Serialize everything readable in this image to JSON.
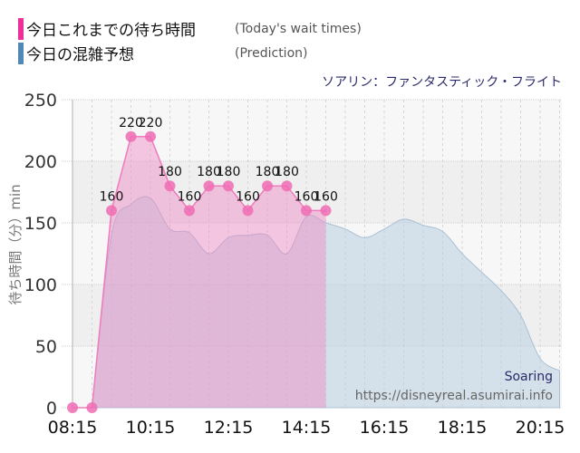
{
  "legend": {
    "actual": {
      "label_jp": "今日これまでの待ち時間",
      "label_en": "(Today's wait times)",
      "color": "#ee2f97"
    },
    "prediction": {
      "label_jp": "今日の混雑予想",
      "label_en": "(Prediction)",
      "color": "#5088b8"
    }
  },
  "attraction_title": "ソアリン：ファンタスティック・フライト",
  "watermark": {
    "name": "Soaring",
    "url": "https://disneyreal.asumirai.info"
  },
  "chart_data": {
    "type": "area",
    "title": "ソアリン：ファンタスティック・フライト",
    "ylabel": "待ち時間（分）min",
    "xlabel": "",
    "ylim": [
      0,
      250
    ],
    "yticks": [
      0,
      50,
      100,
      150,
      200,
      250
    ],
    "xticks": [
      "08:15",
      "10:15",
      "12:15",
      "14:15",
      "16:15",
      "18:15",
      "20:15"
    ],
    "series": [
      {
        "name": "今日これまでの待ち時間 (Today's wait times)",
        "x": [
          "08:15",
          "08:45",
          "09:15",
          "09:45",
          "10:15",
          "10:45",
          "11:15",
          "11:45",
          "12:15",
          "12:45",
          "13:15",
          "13:45",
          "14:15",
          "14:45"
        ],
        "values": [
          0,
          0,
          160,
          220,
          220,
          180,
          160,
          180,
          180,
          160,
          180,
          180,
          160,
          160
        ],
        "data_labels": [
          "",
          "",
          "160",
          "220",
          "220",
          "180",
          "160",
          "180",
          "180",
          "160",
          "180",
          "180",
          "160",
          "160"
        ]
      },
      {
        "name": "今日の混雑予想 (Prediction)",
        "x": [
          "08:45",
          "09:15",
          "09:45",
          "10:15",
          "10:45",
          "11:15",
          "11:45",
          "12:15",
          "12:45",
          "13:15",
          "13:45",
          "14:15",
          "14:45",
          "15:15",
          "15:45",
          "16:15",
          "16:45",
          "17:15",
          "17:45",
          "18:15",
          "18:45",
          "19:15",
          "19:45",
          "20:15",
          "20:45"
        ],
        "values": [
          0,
          140,
          165,
          170,
          145,
          142,
          125,
          138,
          140,
          140,
          125,
          155,
          150,
          145,
          138,
          145,
          153,
          148,
          143,
          125,
          110,
          95,
          75,
          40,
          30
        ]
      }
    ]
  }
}
